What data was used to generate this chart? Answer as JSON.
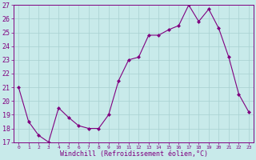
{
  "x": [
    0,
    1,
    2,
    3,
    4,
    5,
    6,
    7,
    8,
    9,
    10,
    11,
    12,
    13,
    14,
    15,
    16,
    17,
    18,
    19,
    20,
    21,
    22,
    23
  ],
  "y": [
    21.0,
    18.5,
    17.5,
    17.0,
    19.5,
    18.8,
    18.2,
    18.0,
    18.0,
    19.0,
    21.5,
    23.0,
    23.2,
    24.8,
    24.8,
    25.2,
    25.5,
    27.0,
    25.8,
    26.7,
    25.3,
    23.2,
    20.5,
    19.2
  ],
  "color": "#800080",
  "bg_color": "#c8eaea",
  "grid_color": "#a8d0d0",
  "xlabel": "Windchill (Refroidissement éolien,°C)",
  "ylim": [
    17,
    27
  ],
  "xlim_left": -0.5,
  "xlim_right": 23.5,
  "yticks": [
    17,
    18,
    19,
    20,
    21,
    22,
    23,
    24,
    25,
    26,
    27
  ],
  "xticks": [
    0,
    1,
    2,
    3,
    4,
    5,
    6,
    7,
    8,
    9,
    10,
    11,
    12,
    13,
    14,
    15,
    16,
    17,
    18,
    19,
    20,
    21,
    22,
    23
  ],
  "marker": "D",
  "markersize": 2.0,
  "linewidth": 0.8,
  "ytick_fontsize": 6.0,
  "xtick_fontsize": 4.5,
  "xlabel_fontsize": 6.0
}
